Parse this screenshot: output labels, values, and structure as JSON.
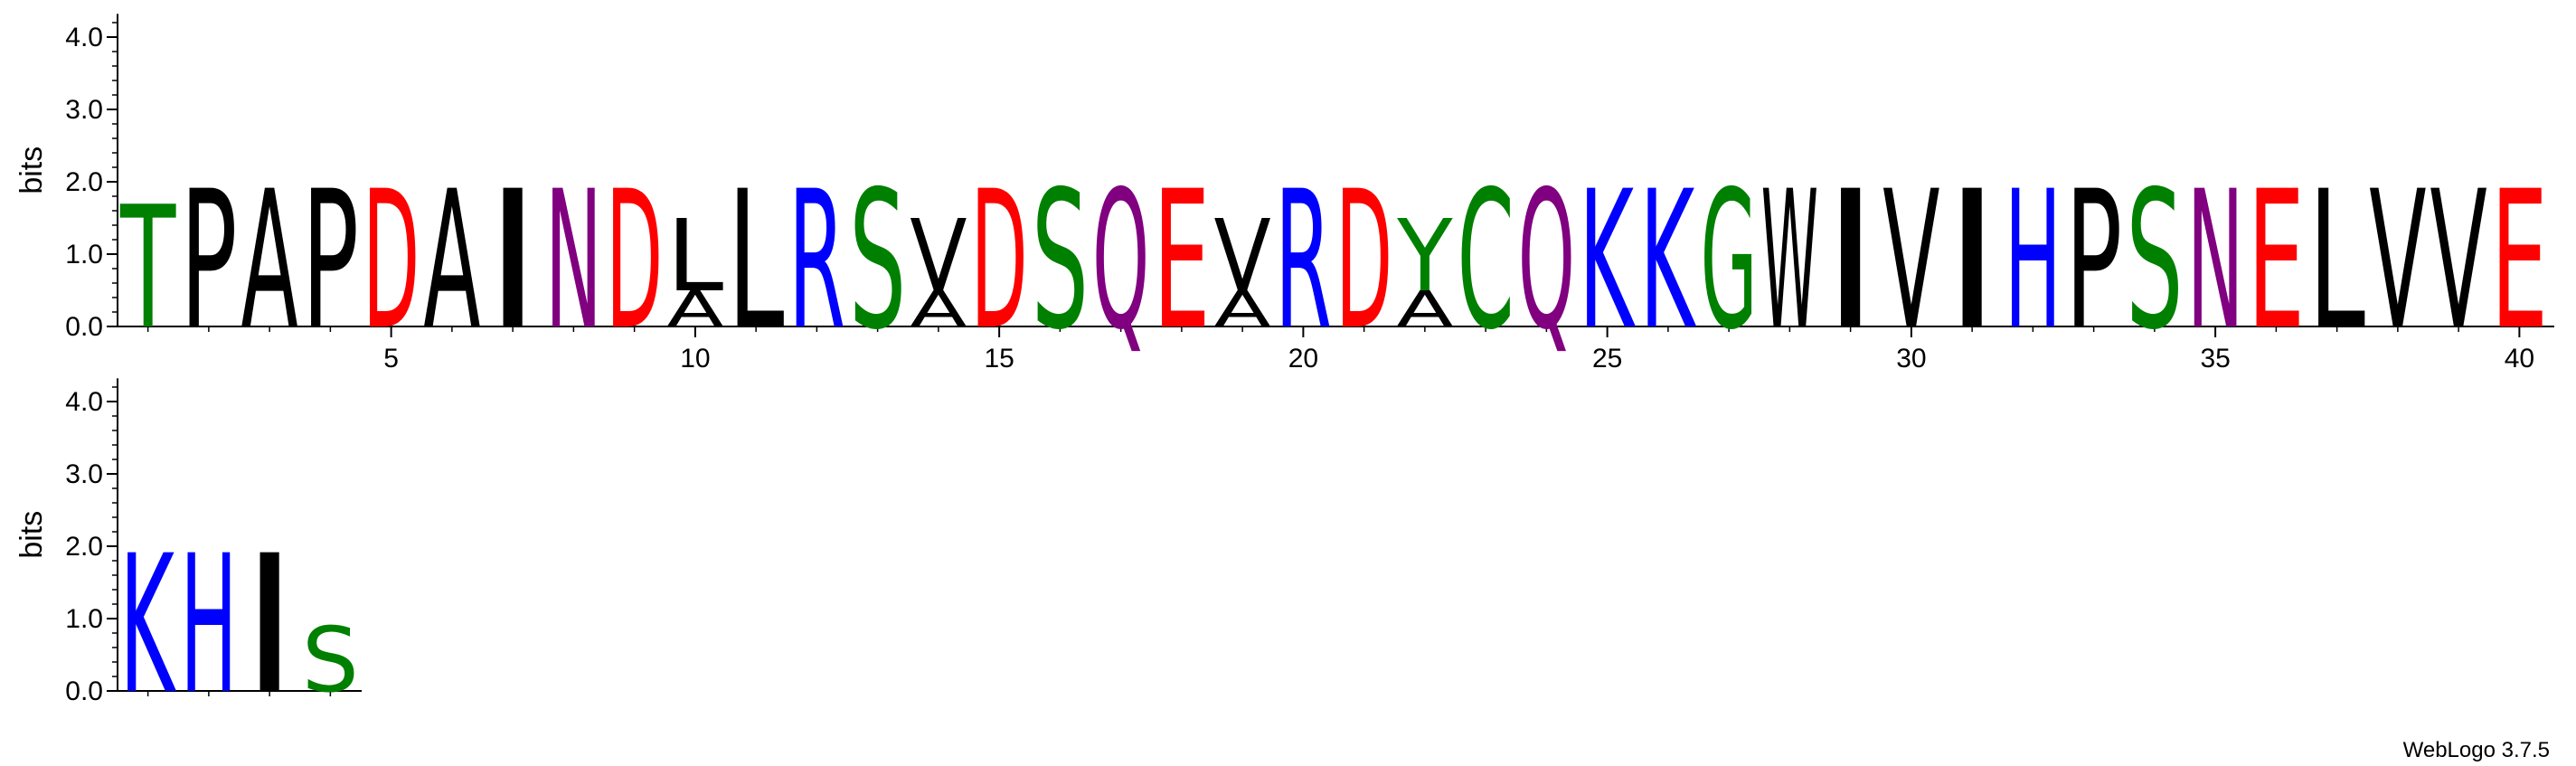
{
  "chart_data": {
    "type": "sequence-logo",
    "ylabel": "bits",
    "ylim": [
      0,
      4.32
    ],
    "yticks": [
      "0.0",
      "1.0",
      "2.0",
      "3.0",
      "4.0"
    ],
    "xtick_labels": [
      "5",
      "10",
      "15",
      "20",
      "25",
      "30",
      "35",
      "40"
    ],
    "footer": "WebLogo 3.7.5",
    "colors": {
      "hydrophobic": "#000000",
      "acidic": "#ff0000",
      "basic": "#0000ff",
      "polar": "#008000",
      "amide": "#800080"
    },
    "color_map": {
      "A": "#000000",
      "V": "#000000",
      "L": "#000000",
      "I": "#000000",
      "P": "#000000",
      "W": "#000000",
      "F": "#000000",
      "M": "#000000",
      "D": "#ff0000",
      "E": "#ff0000",
      "K": "#0000ff",
      "R": "#0000ff",
      "H": "#0000ff",
      "S": "#008000",
      "T": "#008000",
      "Y": "#008000",
      "C": "#008000",
      "G": "#008000",
      "N": "#800080",
      "Q": "#800080"
    },
    "positions": [
      {
        "pos": 1,
        "stack": [
          {
            "letter": "T",
            "bits": 1.7
          }
        ]
      },
      {
        "pos": 2,
        "stack": [
          {
            "letter": "P",
            "bits": 1.92
          }
        ]
      },
      {
        "pos": 3,
        "stack": [
          {
            "letter": "A",
            "bits": 1.92
          }
        ]
      },
      {
        "pos": 4,
        "stack": [
          {
            "letter": "P",
            "bits": 1.92
          }
        ]
      },
      {
        "pos": 5,
        "stack": [
          {
            "letter": "D",
            "bits": 1.92
          }
        ]
      },
      {
        "pos": 6,
        "stack": [
          {
            "letter": "A",
            "bits": 1.92
          }
        ]
      },
      {
        "pos": 7,
        "stack": [
          {
            "letter": "I",
            "bits": 1.92
          }
        ]
      },
      {
        "pos": 8,
        "stack": [
          {
            "letter": "N",
            "bits": 1.92
          }
        ]
      },
      {
        "pos": 9,
        "stack": [
          {
            "letter": "D",
            "bits": 1.92
          }
        ]
      },
      {
        "pos": 10,
        "stack": [
          {
            "letter": "A",
            "bits": 0.5
          },
          {
            "letter": "L",
            "bits": 1.0
          }
        ]
      },
      {
        "pos": 11,
        "stack": [
          {
            "letter": "L",
            "bits": 1.92
          }
        ]
      },
      {
        "pos": 12,
        "stack": [
          {
            "letter": "R",
            "bits": 1.92
          }
        ]
      },
      {
        "pos": 13,
        "stack": [
          {
            "letter": "S",
            "bits": 1.92
          }
        ]
      },
      {
        "pos": 14,
        "stack": [
          {
            "letter": "A",
            "bits": 0.5
          },
          {
            "letter": "V",
            "bits": 1.0
          }
        ]
      },
      {
        "pos": 15,
        "stack": [
          {
            "letter": "D",
            "bits": 1.92
          }
        ]
      },
      {
        "pos": 16,
        "stack": [
          {
            "letter": "S",
            "bits": 1.92
          }
        ]
      },
      {
        "pos": 17,
        "stack": [
          {
            "letter": "Q",
            "bits": 1.92
          }
        ]
      },
      {
        "pos": 18,
        "stack": [
          {
            "letter": "E",
            "bits": 1.92
          }
        ]
      },
      {
        "pos": 19,
        "stack": [
          {
            "letter": "A",
            "bits": 0.5
          },
          {
            "letter": "V",
            "bits": 1.0
          }
        ]
      },
      {
        "pos": 20,
        "stack": [
          {
            "letter": "R",
            "bits": 1.92
          }
        ]
      },
      {
        "pos": 21,
        "stack": [
          {
            "letter": "D",
            "bits": 1.92
          }
        ]
      },
      {
        "pos": 22,
        "stack": [
          {
            "letter": "A",
            "bits": 0.5
          },
          {
            "letter": "Y",
            "bits": 1.0
          }
        ]
      },
      {
        "pos": 23,
        "stack": [
          {
            "letter": "C",
            "bits": 1.92
          }
        ]
      },
      {
        "pos": 24,
        "stack": [
          {
            "letter": "Q",
            "bits": 1.92
          }
        ]
      },
      {
        "pos": 25,
        "stack": [
          {
            "letter": "K",
            "bits": 1.92
          }
        ]
      },
      {
        "pos": 26,
        "stack": [
          {
            "letter": "K",
            "bits": 1.92
          }
        ]
      },
      {
        "pos": 27,
        "stack": [
          {
            "letter": "G",
            "bits": 1.92
          }
        ]
      },
      {
        "pos": 28,
        "stack": [
          {
            "letter": "W",
            "bits": 1.92
          }
        ]
      },
      {
        "pos": 29,
        "stack": [
          {
            "letter": "I",
            "bits": 1.92
          }
        ]
      },
      {
        "pos": 30,
        "stack": [
          {
            "letter": "V",
            "bits": 1.92
          }
        ]
      },
      {
        "pos": 31,
        "stack": [
          {
            "letter": "I",
            "bits": 1.92
          }
        ]
      },
      {
        "pos": 32,
        "stack": [
          {
            "letter": "H",
            "bits": 1.92
          }
        ]
      },
      {
        "pos": 33,
        "stack": [
          {
            "letter": "P",
            "bits": 1.92
          }
        ]
      },
      {
        "pos": 34,
        "stack": [
          {
            "letter": "S",
            "bits": 1.92
          }
        ]
      },
      {
        "pos": 35,
        "stack": [
          {
            "letter": "N",
            "bits": 1.92
          }
        ]
      },
      {
        "pos": 36,
        "stack": [
          {
            "letter": "E",
            "bits": 1.92
          }
        ]
      },
      {
        "pos": 37,
        "stack": [
          {
            "letter": "L",
            "bits": 1.92
          }
        ]
      },
      {
        "pos": 38,
        "stack": [
          {
            "letter": "V",
            "bits": 1.92
          }
        ]
      },
      {
        "pos": 39,
        "stack": [
          {
            "letter": "V",
            "bits": 1.92
          }
        ]
      },
      {
        "pos": 40,
        "stack": [
          {
            "letter": "E",
            "bits": 1.92
          }
        ]
      },
      {
        "pos": 41,
        "stack": [
          {
            "letter": "K",
            "bits": 1.92
          }
        ]
      },
      {
        "pos": 42,
        "stack": [
          {
            "letter": "H",
            "bits": 1.92
          }
        ]
      },
      {
        "pos": 43,
        "stack": [
          {
            "letter": "I",
            "bits": 1.92
          }
        ]
      },
      {
        "pos": 44,
        "stack": [
          {
            "letter": "S",
            "bits": 0.9
          }
        ]
      }
    ]
  }
}
